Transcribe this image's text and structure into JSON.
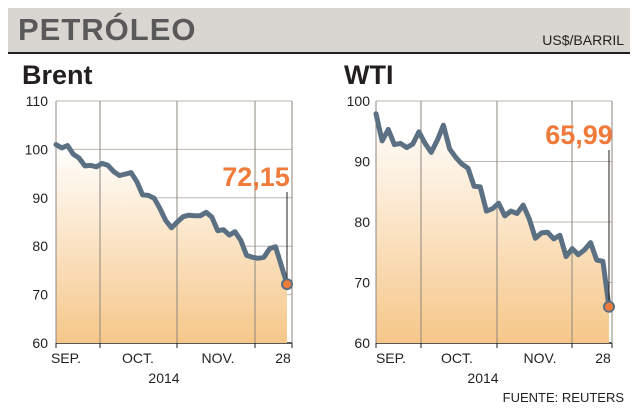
{
  "header": {
    "title": "PETRÓLEO",
    "unit": "US$/BARRIL"
  },
  "source": "FUENTE: REUTERS",
  "colors": {
    "line": "#5b7082",
    "marker": "#f07a3a",
    "callout": "#f07a3a",
    "fill_top": "#ffffff",
    "fill_bottom": "#f6c789"
  },
  "chart_data": [
    {
      "type": "area",
      "title": "Brent",
      "ylim": [
        60,
        110
      ],
      "yticks": [
        60,
        70,
        80,
        90,
        100,
        110
      ],
      "xtick_labels": [
        "SEP.",
        "OCT.",
        "NOV.",
        "28"
      ],
      "year_label": "2014",
      "last_value_label": "72,15",
      "series": [
        {
          "values": [
            101.0,
            100.3,
            100.8,
            99.0,
            98.2,
            96.6,
            96.7,
            96.4,
            97.1,
            96.7,
            95.4,
            94.6,
            94.9,
            95.2,
            93.3,
            90.6,
            90.5,
            89.9,
            87.8,
            85.3,
            83.8,
            85.0,
            86.1,
            86.4,
            86.3,
            86.3,
            87.0,
            86.0,
            83.2,
            83.4,
            82.3,
            83.0,
            81.2,
            78.1,
            77.7,
            77.5,
            77.7,
            79.5,
            79.9,
            76.1,
            72.15
          ]
        }
      ]
    },
    {
      "type": "area",
      "title": "WTI",
      "ylim": [
        60,
        100
      ],
      "yticks": [
        60,
        70,
        80,
        90,
        100
      ],
      "xtick_labels": [
        "SEP.",
        "OCT.",
        "NOV.",
        "28"
      ],
      "year_label": "2014",
      "last_value_label": "65,99",
      "series": [
        {
          "values": [
            97.9,
            93.4,
            95.3,
            92.8,
            93.0,
            92.3,
            92.9,
            94.9,
            93.0,
            91.5,
            93.5,
            96.0,
            92.1,
            90.7,
            89.6,
            88.9,
            85.9,
            85.8,
            81.8,
            82.2,
            83.1,
            81.0,
            81.8,
            81.4,
            82.8,
            80.5,
            77.3,
            78.2,
            78.3,
            77.2,
            77.8,
            74.3,
            75.6,
            74.6,
            75.4,
            76.6,
            73.7,
            73.5,
            65.99
          ]
        }
      ]
    }
  ]
}
